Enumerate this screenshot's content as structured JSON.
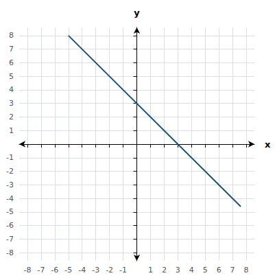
{
  "chart_data": {
    "type": "line",
    "x": [
      -5,
      7.6
    ],
    "values": [
      8,
      -4.6
    ],
    "color": "#1a5276",
    "xlabel": "x",
    "ylabel": "y",
    "xlim": [
      -8.6,
      8.6
    ],
    "ylim": [
      -8.6,
      8.6
    ],
    "xticks": [
      -8,
      -7,
      -6,
      -5,
      -4,
      -3,
      -2,
      -1,
      1,
      2,
      3,
      4,
      5,
      6,
      7,
      8
    ],
    "yticks": [
      -8,
      -7,
      -6,
      -5,
      -4,
      -3,
      -2,
      -1,
      1,
      2,
      3,
      4,
      5,
      6,
      7,
      8
    ],
    "grid": true
  }
}
